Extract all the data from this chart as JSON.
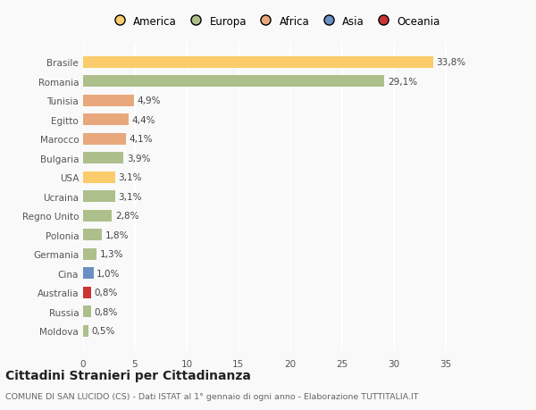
{
  "countries": [
    "Brasile",
    "Romania",
    "Tunisia",
    "Egitto",
    "Marocco",
    "Bulgaria",
    "USA",
    "Ucraina",
    "Regno Unito",
    "Polonia",
    "Germania",
    "Cina",
    "Australia",
    "Russia",
    "Moldova"
  ],
  "values": [
    33.8,
    29.1,
    4.9,
    4.4,
    4.1,
    3.9,
    3.1,
    3.1,
    2.8,
    1.8,
    1.3,
    1.0,
    0.8,
    0.8,
    0.5
  ],
  "labels": [
    "33,8%",
    "29,1%",
    "4,9%",
    "4,4%",
    "4,1%",
    "3,9%",
    "3,1%",
    "3,1%",
    "2,8%",
    "1,8%",
    "1,3%",
    "1,0%",
    "0,8%",
    "0,8%",
    "0,5%"
  ],
  "colors": [
    "#FACC6B",
    "#ADBF8B",
    "#E8A87C",
    "#E8A87C",
    "#E8A87C",
    "#ADBF8B",
    "#FACC6B",
    "#ADBF8B",
    "#ADBF8B",
    "#ADBF8B",
    "#ADBF8B",
    "#6B8EC4",
    "#CC3333",
    "#ADBF8B",
    "#ADBF8B"
  ],
  "continent_labels": [
    "America",
    "Europa",
    "Africa",
    "Asia",
    "Oceania"
  ],
  "continent_colors": [
    "#FACC6B",
    "#ADBF8B",
    "#E8A87C",
    "#6B8EC4",
    "#CC3333"
  ],
  "xlim": [
    0,
    37
  ],
  "xticks": [
    0,
    5,
    10,
    15,
    20,
    25,
    30,
    35
  ],
  "title": "Cittadini Stranieri per Cittadinanza",
  "subtitle": "COMUNE DI SAN LUCIDO (CS) - Dati ISTAT al 1° gennaio di ogni anno - Elaborazione TUTTITALIA.IT",
  "bg_color": "#f9f9f9",
  "grid_color": "#ffffff",
  "bar_height": 0.6
}
